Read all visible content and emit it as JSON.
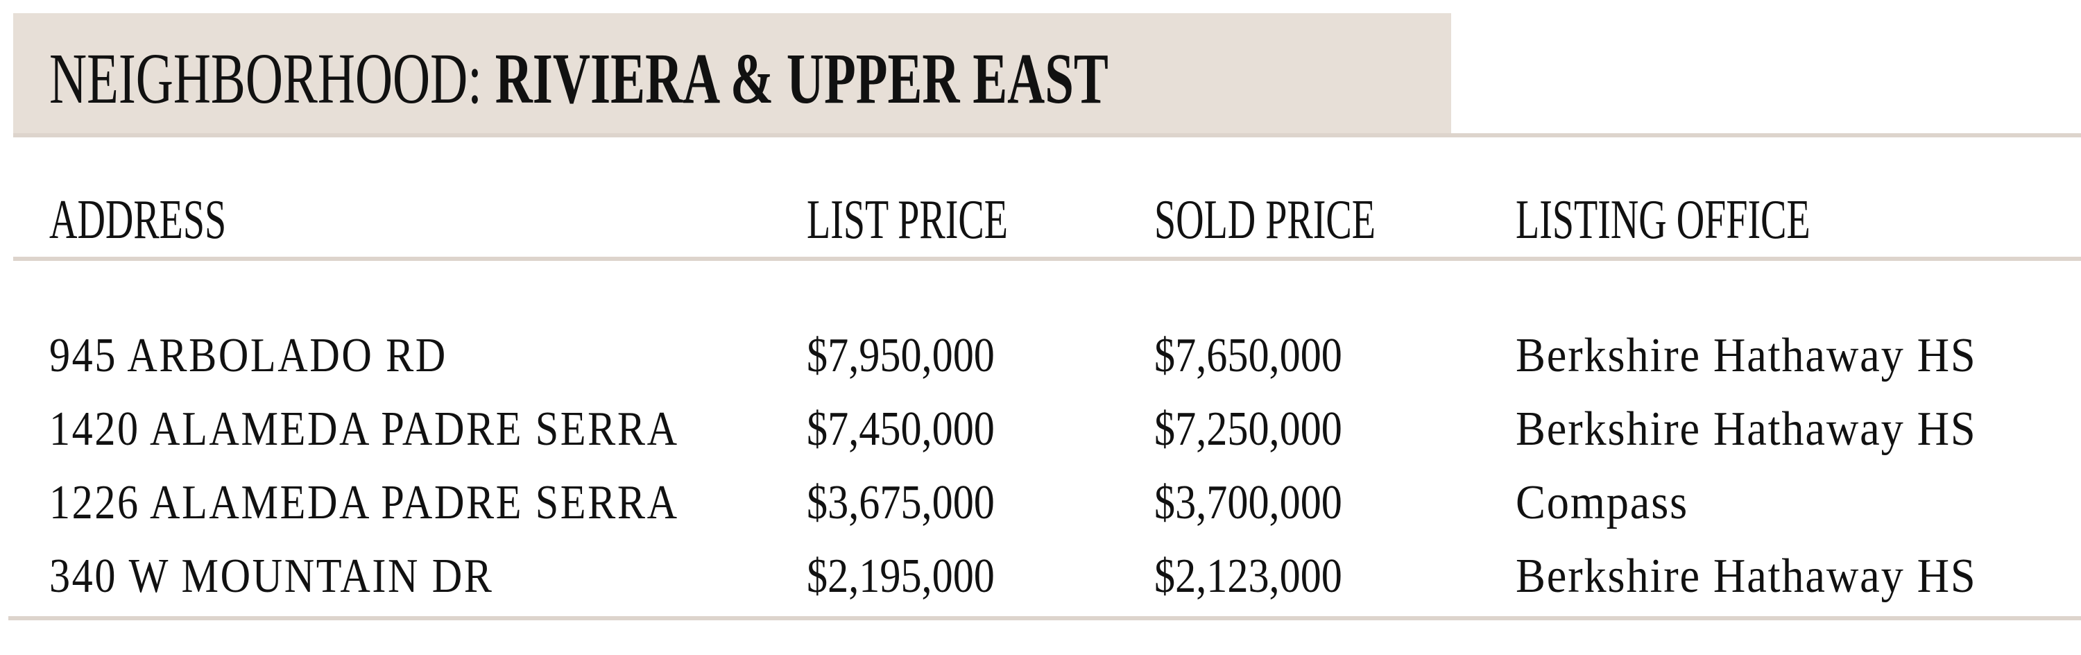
{
  "header": {
    "label": "NEIGHBORHOOD:",
    "name": "RIVIERA & UPPER EAST",
    "background": "#e7dfd7"
  },
  "columns": [
    "ADDRESS",
    "LIST PRICE",
    "SOLD PRICE",
    "LISTING OFFICE"
  ],
  "rows": [
    {
      "address": "945 ARBOLADO RD",
      "list_price": "$7,950,000",
      "sold_price": "$7,650,000",
      "office": "Berkshire Hathaway HS"
    },
    {
      "address": "1420 ALAMEDA PADRE SERRA",
      "list_price": "$7,450,000",
      "sold_price": "$7,250,000",
      "office": "Berkshire Hathaway HS"
    },
    {
      "address": "1226 ALAMEDA PADRE SERRA",
      "list_price": "$3,675,000",
      "sold_price": "$3,700,000",
      "office": "Compass"
    },
    {
      "address": "340 W MOUNTAIN DR",
      "list_price": "$2,195,000",
      "sold_price": "$2,123,000",
      "office": "Berkshire Hathaway HS"
    }
  ]
}
